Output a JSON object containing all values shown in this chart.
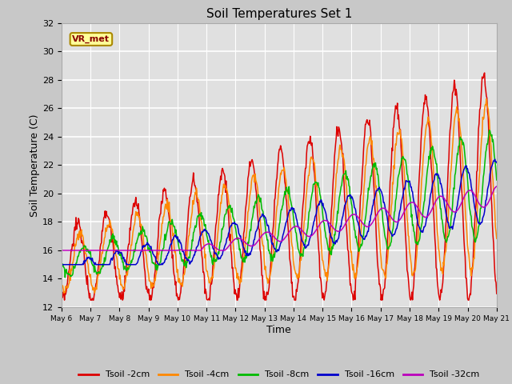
{
  "title": "Soil Temperatures Set 1",
  "xlabel": "Time",
  "ylabel": "Soil Temperature (C)",
  "ylim": [
    12,
    32
  ],
  "background_color": "#c8c8c8",
  "plot_bg_color": "#e0e0e0",
  "series_colors": {
    "Tsoil -2cm": "#dd0000",
    "Tsoil -4cm": "#ff8800",
    "Tsoil -8cm": "#00bb00",
    "Tsoil -16cm": "#0000cc",
    "Tsoil -32cm": "#bb00bb"
  },
  "vr_met_box_color": "#ffff99",
  "vr_met_border_color": "#aa8800",
  "vr_met_text_color": "#880000",
  "tick_labels": [
    "May 6",
    "May 7",
    "May 8",
    "May 9",
    "May 10",
    "May 11",
    "May 12",
    "May 13",
    "May 14",
    "May 15",
    "May 16",
    "May 17",
    "May 18",
    "May 19",
    "May 20",
    "May 21"
  ],
  "yticks": [
    12,
    14,
    16,
    18,
    20,
    22,
    24,
    26,
    28,
    30,
    32
  ],
  "n_days": 15,
  "pts_per_day": 48
}
